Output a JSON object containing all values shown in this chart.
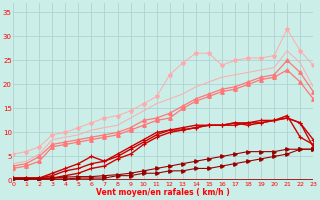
{
  "x": [
    0,
    1,
    2,
    3,
    4,
    5,
    6,
    7,
    8,
    9,
    10,
    11,
    12,
    13,
    14,
    15,
    16,
    17,
    18,
    19,
    20,
    21,
    22,
    23
  ],
  "rafale_upper1": [
    3.5,
    4.0,
    5.5,
    8.5,
    9.0,
    9.5,
    10.5,
    11.0,
    11.5,
    13.0,
    14.5,
    16.0,
    17.0,
    18.0,
    19.5,
    20.5,
    21.5,
    22.0,
    22.5,
    23.0,
    23.5,
    27.0,
    24.5,
    19.5
  ],
  "rafale_upper2": [
    5.5,
    6.0,
    7.0,
    9.5,
    10.0,
    11.0,
    12.0,
    13.0,
    13.5,
    14.5,
    16.0,
    17.5,
    22.0,
    24.5,
    26.5,
    26.5,
    24.0,
    25.0,
    25.5,
    25.5,
    26.0,
    31.5,
    27.0,
    24.0
  ],
  "rafale_mid1": [
    3.0,
    3.5,
    5.0,
    7.5,
    8.0,
    8.5,
    9.0,
    9.5,
    10.0,
    11.0,
    12.5,
    13.0,
    14.0,
    15.5,
    17.0,
    18.0,
    19.0,
    19.5,
    20.5,
    21.5,
    22.0,
    25.0,
    22.5,
    18.5
  ],
  "rafale_mid2": [
    2.5,
    3.0,
    4.0,
    7.0,
    7.5,
    8.0,
    8.5,
    9.0,
    9.5,
    10.5,
    11.5,
    12.5,
    13.0,
    15.0,
    16.5,
    17.5,
    18.5,
    19.0,
    20.0,
    21.0,
    21.5,
    23.0,
    20.5,
    17.0
  ],
  "moy_upper1": [
    0.5,
    0.5,
    0.5,
    0.5,
    1.0,
    1.5,
    2.5,
    3.0,
    4.5,
    5.5,
    7.5,
    9.0,
    10.0,
    10.5,
    11.0,
    11.5,
    11.5,
    12.0,
    11.5,
    12.0,
    12.5,
    13.0,
    12.0,
    7.0
  ],
  "moy_upper2": [
    0.5,
    0.5,
    0.5,
    1.0,
    2.0,
    2.5,
    3.5,
    4.0,
    5.0,
    6.5,
    8.0,
    9.5,
    10.5,
    10.5,
    11.0,
    11.5,
    11.5,
    11.5,
    12.0,
    12.0,
    12.5,
    13.0,
    12.0,
    8.5
  ],
  "moy_upper3": [
    0.5,
    0.5,
    0.5,
    1.5,
    2.5,
    3.5,
    5.0,
    4.0,
    5.5,
    7.0,
    8.5,
    10.0,
    10.5,
    11.0,
    11.5,
    11.5,
    11.5,
    12.0,
    12.0,
    12.5,
    12.5,
    13.5,
    9.0,
    7.5
  ],
  "moy_flat1": [
    0.3,
    0.3,
    0.4,
    0.5,
    0.7,
    0.8,
    0.8,
    1.0,
    1.2,
    1.5,
    2.0,
    2.5,
    3.0,
    3.5,
    4.0,
    4.5,
    5.0,
    5.5,
    6.0,
    6.0,
    6.0,
    6.5,
    6.5,
    6.5
  ],
  "moy_flat2": [
    0.3,
    0.3,
    0.3,
    0.3,
    0.3,
    0.5,
    0.5,
    0.5,
    1.0,
    1.0,
    1.5,
    1.5,
    2.0,
    2.0,
    2.5,
    2.5,
    3.0,
    3.5,
    4.0,
    4.5,
    5.0,
    5.5,
    6.5,
    6.5
  ],
  "moy_flat3": [
    0.2,
    0.2,
    0.2,
    0.2,
    0.2,
    0.2,
    0.2,
    0.2,
    0.2,
    0.2,
    0.2,
    0.2,
    0.2,
    0.2,
    0.2,
    0.2,
    0.2,
    0.2,
    0.2,
    0.2,
    0.2,
    0.2,
    0.2,
    0.2
  ],
  "color_light_pink": "#ffaaaa",
  "color_mid_pink": "#ff7777",
  "color_dark_red": "#cc0000",
  "color_dark_red2": "#990000",
  "bg_color": "#cceee8",
  "grid_color": "#aacccc",
  "xlabel": "Vent moyen/en rafales ( km/h )",
  "ylim": [
    0,
    37
  ],
  "xlim": [
    0,
    23
  ],
  "yticks": [
    0,
    5,
    10,
    15,
    20,
    25,
    30,
    35
  ],
  "xticks": [
    0,
    1,
    2,
    3,
    4,
    5,
    6,
    7,
    8,
    9,
    10,
    11,
    12,
    13,
    14,
    15,
    16,
    17,
    18,
    19,
    20,
    21,
    22,
    23
  ]
}
